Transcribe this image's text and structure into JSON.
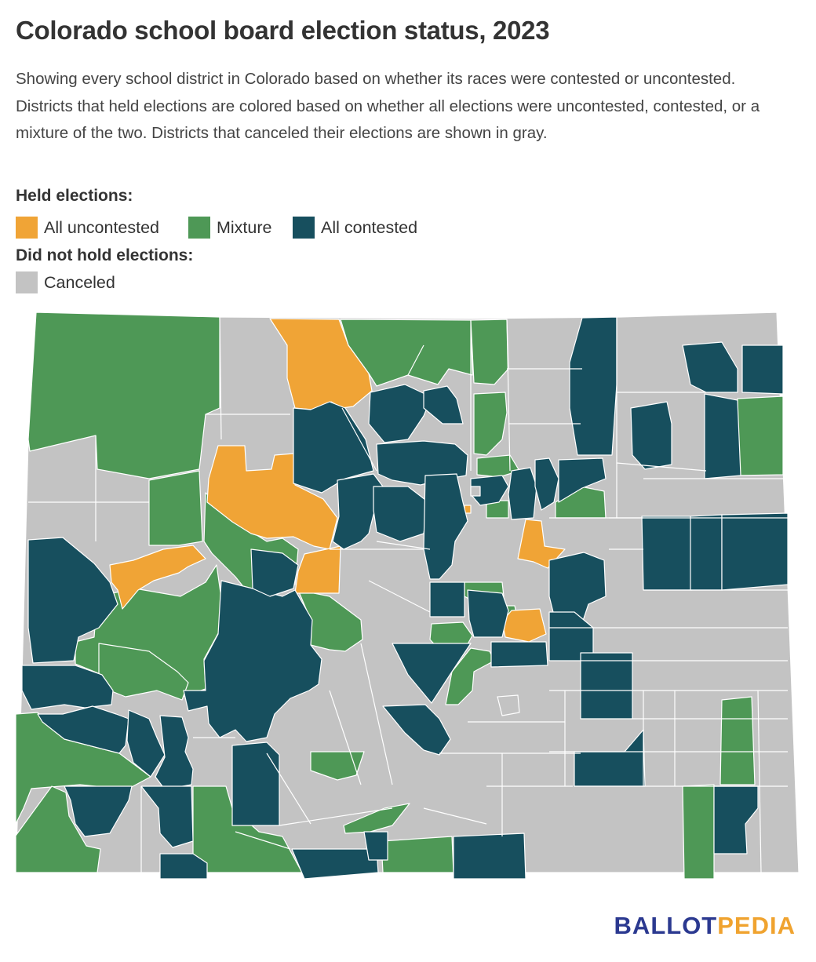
{
  "title": "Colorado school board election status, 2023",
  "subtitle": "Showing every school district in Colorado based on whether its races were contested or uncontested. Districts that held elections are colored based on whether all elections were uncontested, contested, or a mixture of the two. Districts that canceled their elections are shown in gray.",
  "legend": {
    "held_heading": "Held elections:",
    "not_held_heading": "Did not hold elections:",
    "items": [
      {
        "label": "All uncontested",
        "color": "#f0a436"
      },
      {
        "label": "Mixture",
        "color": "#4e9856"
      },
      {
        "label": "All contested",
        "color": "#174f5e"
      },
      {
        "label": "Canceled",
        "color": "#c3c3c3"
      }
    ]
  },
  "map": {
    "region": "Colorado",
    "category_colors": {
      "uncontested": "#f0a436",
      "mixture": "#4e9856",
      "contested": "#174f5e",
      "canceled": "#c3c3c3"
    }
  },
  "logo": {
    "part1": "BALLOT",
    "part2": "PEDIA"
  }
}
